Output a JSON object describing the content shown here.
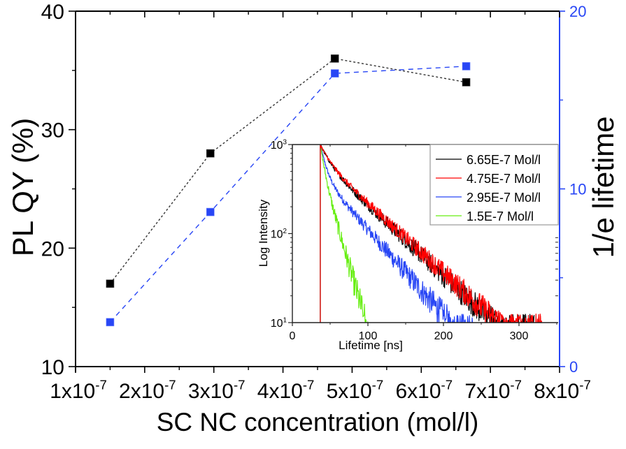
{
  "chart_data": [
    {
      "type": "scatter",
      "role": "main",
      "title": "",
      "xlabel": "SC NC concentration (mol/l)",
      "ylabel": "PL QY (%)",
      "y2label": "1/e lifetime",
      "xlim": [
        1e-07,
        8e-07
      ],
      "ylim": [
        10,
        40
      ],
      "y2lim": [
        0,
        20
      ],
      "x_ticks": [
        1e-07,
        2e-07,
        3e-07,
        4e-07,
        5e-07,
        6e-07,
        7e-07,
        8e-07
      ],
      "x_tick_labels": [
        {
          "mant": "1x10",
          "exp": "-7"
        },
        {
          "mant": "2x10",
          "exp": "-7"
        },
        {
          "mant": "3x10",
          "exp": "-7"
        },
        {
          "mant": "4x10",
          "exp": "-7"
        },
        {
          "mant": "5x10",
          "exp": "-7"
        },
        {
          "mant": "6x10",
          "exp": "-7"
        },
        {
          "mant": "7x10",
          "exp": "-7"
        },
        {
          "mant": "8x10",
          "exp": "-7"
        }
      ],
      "y_ticks": [
        10,
        20,
        30,
        40
      ],
      "y_tick_labels": [
        "10",
        "20",
        "30",
        "40"
      ],
      "y2_ticks": [
        0,
        10,
        20
      ],
      "y2_tick_labels": [
        "0",
        "10",
        "20"
      ],
      "grid": false,
      "series": [
        {
          "name": "PL QY",
          "axis": "left",
          "color": "#000000",
          "line": "dotted",
          "marker": "square",
          "x": [
            1.5e-07,
            2.95e-07,
            4.75e-07,
            6.65e-07
          ],
          "y": [
            17,
            28,
            36,
            34
          ]
        },
        {
          "name": "1/e lifetime",
          "axis": "right",
          "color": "#2846f5",
          "line": "dashed",
          "marker": "square",
          "x": [
            1.5e-07,
            2.95e-07,
            4.75e-07,
            6.65e-07
          ],
          "y": [
            2.5,
            8.7,
            16.5,
            16.9
          ]
        }
      ]
    },
    {
      "type": "line",
      "role": "inset",
      "title": "",
      "xlabel": "Lifetime [ns]",
      "ylabel": "Log Intensity",
      "xlim": [
        0,
        350
      ],
      "ylim": [
        10,
        1000
      ],
      "yscale": "log",
      "x_ticks": [
        0,
        100,
        200,
        300
      ],
      "x_tick_labels": [
        "0",
        "100",
        "200",
        "300"
      ],
      "y_ticks": [
        10,
        100,
        1000
      ],
      "y_tick_labels": [
        {
          "mant": "10",
          "exp": "1"
        },
        {
          "mant": "10",
          "exp": "2"
        },
        {
          "mant": "10",
          "exp": "3"
        }
      ],
      "legend_position": "top-right",
      "series": [
        {
          "name": "6.65E-7 Mol/l",
          "color": "#000000",
          "peak_ns": 37,
          "tau_fast_ns": 12,
          "tau_slow_ns": 55,
          "fast_fraction": 0.35,
          "end_ns": 320
        },
        {
          "name": "4.75E-7 Mol/l",
          "color": "#ff0000",
          "peak_ns": 37,
          "tau_fast_ns": 12,
          "tau_slow_ns": 56,
          "fast_fraction": 0.33,
          "end_ns": 330
        },
        {
          "name": "2.95E-7 Mol/l",
          "color": "#2846f5",
          "peak_ns": 37,
          "tau_fast_ns": 7,
          "tau_slow_ns": 45,
          "fast_fraction": 0.55,
          "end_ns": 240
        },
        {
          "name": "1.5E-7 Mol/l",
          "color": "#66ee11",
          "peak_ns": 37,
          "tau_fast_ns": 5,
          "tau_slow_ns": 15,
          "fast_fraction": 0.45,
          "end_ns": 100
        }
      ]
    }
  ]
}
